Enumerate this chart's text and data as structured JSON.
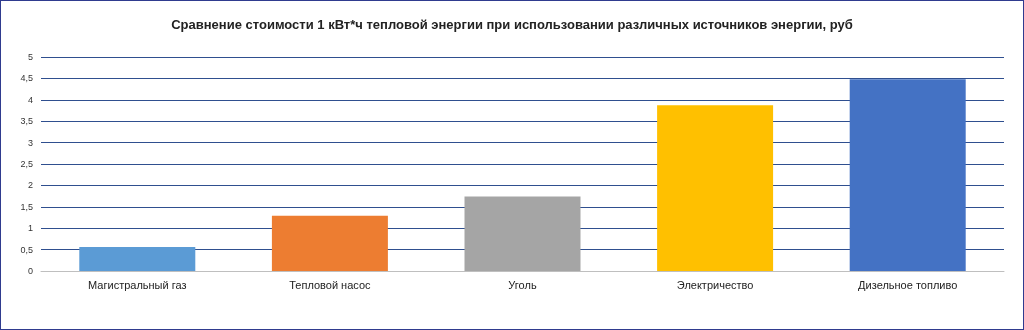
{
  "chart_data": {
    "type": "bar",
    "title": "Сравнение стоимости 1 кВт*ч тепловой энергии при использовании различных источников энергии, руб",
    "categories": [
      "Магистральный газ",
      "Тепловой насос",
      "Уголь",
      "Электричество",
      "Дизельное топливо"
    ],
    "values": [
      0.56,
      1.29,
      1.74,
      3.87,
      4.48
    ],
    "colors": [
      "#5b9bd5",
      "#ed7d31",
      "#a5a5a5",
      "#ffc000",
      "#4472c4"
    ],
    "ylim": [
      0,
      5
    ],
    "yticks": [
      0,
      {
        "value": 0.5,
        "label": "0,5"
      },
      1,
      {
        "value": 1.5,
        "label": "1,5"
      },
      2,
      {
        "value": 2.5,
        "label": "2,5"
      },
      3,
      {
        "value": 3.5,
        "label": "3,5"
      },
      4,
      {
        "value": 4.5,
        "label": "4,5"
      },
      5
    ],
    "grid": "y"
  }
}
